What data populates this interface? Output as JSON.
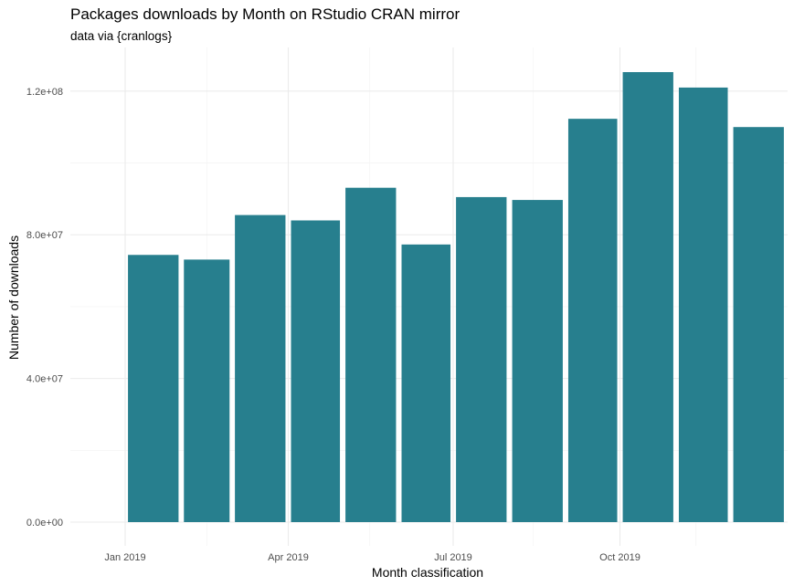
{
  "chart_data": {
    "type": "bar",
    "title": "Packages downloads by Month on RStudio CRAN mirror",
    "subtitle": "data via {cranlogs}",
    "xlabel": "Month classification",
    "ylabel": "Number of downloads",
    "categories": [
      "2019-01",
      "2019-02",
      "2019-03",
      "2019-04",
      "2019-05",
      "2019-06",
      "2019-07",
      "2019-08",
      "2019-09",
      "2019-10",
      "2019-11",
      "2019-12"
    ],
    "values": [
      74400000,
      73100000,
      85500000,
      84000000,
      93100000,
      77300000,
      90500000,
      89700000,
      112300000,
      125300000,
      121000000,
      110000000
    ],
    "x_ticks": [
      {
        "date": "2019-01-01",
        "label": "Jan 2019"
      },
      {
        "date": "2019-04-01",
        "label": "Apr 2019"
      },
      {
        "date": "2019-07-01",
        "label": "Jul 2019"
      },
      {
        "date": "2019-10-01",
        "label": "Oct 2019"
      }
    ],
    "y_ticks": [
      0,
      40000000,
      80000000,
      120000000
    ],
    "y_tick_labels": [
      "0.0e+00",
      "4.0e+07",
      "8.0e+07",
      "1.2e+08"
    ],
    "ylim": [
      0,
      125300000
    ],
    "bar_color": "#277F8E",
    "grid": true,
    "legend": "none"
  }
}
